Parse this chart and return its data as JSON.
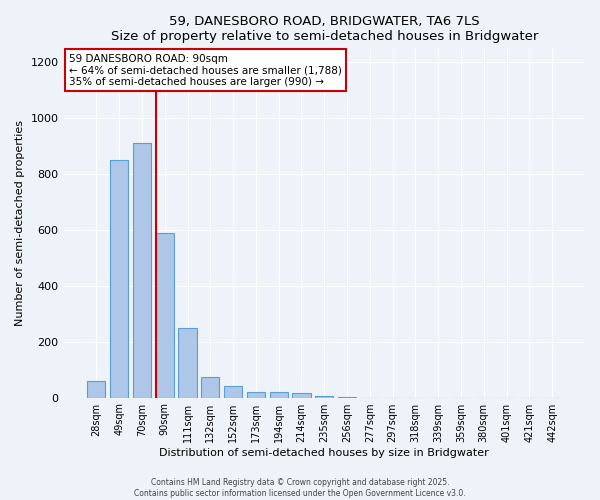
{
  "title": "59, DANESBORO ROAD, BRIDGWATER, TA6 7LS",
  "subtitle": "Size of property relative to semi-detached houses in Bridgwater",
  "xlabel": "Distribution of semi-detached houses by size in Bridgwater",
  "ylabel": "Number of semi-detached properties",
  "bin_labels": [
    "28sqm",
    "49sqm",
    "70sqm",
    "90sqm",
    "111sqm",
    "132sqm",
    "152sqm",
    "173sqm",
    "194sqm",
    "214sqm",
    "235sqm",
    "256sqm",
    "277sqm",
    "297sqm",
    "318sqm",
    "339sqm",
    "359sqm",
    "380sqm",
    "401sqm",
    "421sqm",
    "442sqm"
  ],
  "bar_values": [
    60,
    850,
    910,
    590,
    250,
    75,
    40,
    20,
    20,
    15,
    5,
    2,
    0,
    0,
    0,
    0,
    0,
    0,
    0,
    0,
    0
  ],
  "bar_color": "#aec6e8",
  "bar_edge_color": "#5a9fd4",
  "property_bin_index": 3,
  "red_line_color": "#cc0000",
  "annotation_title": "59 DANESBORO ROAD: 90sqm",
  "annotation_line1": "← 64% of semi-detached houses are smaller (1,788)",
  "annotation_line2": "35% of semi-detached houses are larger (990) →",
  "annotation_box_color": "#ffffff",
  "annotation_box_edge": "#cc0000",
  "ylim": [
    0,
    1250
  ],
  "yticks": [
    0,
    200,
    400,
    600,
    800,
    1000,
    1200
  ],
  "footer1": "Contains HM Land Registry data © Crown copyright and database right 2025.",
  "footer2": "Contains public sector information licensed under the Open Government Licence v3.0.",
  "background_color": "#eef2f9",
  "plot_bg_color": "#eef2f9",
  "grid_color": "#ffffff"
}
